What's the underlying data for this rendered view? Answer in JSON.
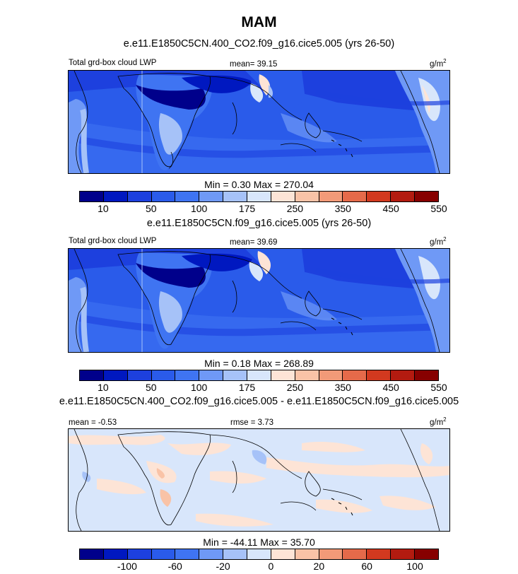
{
  "title": "MAM",
  "panels": [
    {
      "case": "e.e11.E1850C5CN.400_CO2.f09_g16.cice5.005 (yrs 26-50)",
      "left_label": "Total grd-box cloud LWP",
      "center_label": "mean=  39.15",
      "units": "g/m",
      "units_exp": "2",
      "minmax": "Min =   0.30 Max = 270.04"
    },
    {
      "case": "e.e11.E1850C5CN.f09_g16.cice5.005 (yrs 26-50)",
      "left_label": "Total grd-box cloud LWP",
      "center_label": "mean=  39.69",
      "units": "g/m",
      "units_exp": "2",
      "minmax": "Min =   0.18 Max = 268.89"
    },
    {
      "case": "e.e11.E1850C5CN.400_CO2.f09_g16.cice5.005 - e.e11.E1850C5CN.f09_g16.cice5.005",
      "left_label": "mean =  -0.53",
      "center_label": "rmse =  3.73",
      "units": "g/m",
      "units_exp": "2",
      "minmax": "Min = -44.11 Max =  35.70"
    }
  ],
  "colorbars": [
    {
      "colors": [
        "#00008b",
        "#0018c0",
        "#1d40de",
        "#2a5bea",
        "#3f74f2",
        "#6f99f6",
        "#a6c2f8",
        "#d8e6fb",
        "#fde4d6",
        "#f9c3a7",
        "#f29a78",
        "#e56a4a",
        "#d2391f",
        "#b31b10",
        "#870000"
      ],
      "tick_labels": [
        "10",
        "50",
        "100",
        "175",
        "250",
        "350",
        "450",
        "550"
      ],
      "tick_boundaries": [
        1,
        3,
        5,
        7,
        9,
        11,
        13,
        15
      ]
    },
    {
      "colors": [
        "#00008b",
        "#0018c0",
        "#1d40de",
        "#2a5bea",
        "#3f74f2",
        "#6f99f6",
        "#a6c2f8",
        "#d8e6fb",
        "#fde4d6",
        "#f9c3a7",
        "#f29a78",
        "#e56a4a",
        "#d2391f",
        "#b31b10",
        "#870000"
      ],
      "tick_labels": [
        "10",
        "50",
        "100",
        "175",
        "250",
        "350",
        "450",
        "550"
      ],
      "tick_boundaries": [
        1,
        3,
        5,
        7,
        9,
        11,
        13,
        15
      ]
    },
    {
      "colors": [
        "#00008b",
        "#0018c0",
        "#1d40de",
        "#2a5bea",
        "#3f74f2",
        "#6f99f6",
        "#a6c2f8",
        "#d8e6fb",
        "#fde4d6",
        "#f9c3a7",
        "#f29a78",
        "#e56a4a",
        "#d2391f",
        "#b31b10",
        "#870000"
      ],
      "tick_labels": [
        "-100",
        "-60",
        "-20",
        "0",
        "20",
        "60",
        "100"
      ],
      "tick_boundaries": [
        2,
        4,
        6,
        8,
        10,
        12,
        14
      ]
    }
  ],
  "chart_data": [
    {
      "type": "heatmap",
      "title": "MAM",
      "subtitle": "e.e11.E1850C5CN.400_CO2.f09_g16.cice5.005 (yrs 26-50)",
      "variable": "Total grd-box cloud LWP",
      "units": "g/m2",
      "mean": 39.15,
      "min": 0.3,
      "max": 270.04,
      "contour_levels": [
        10,
        25,
        50,
        75,
        100,
        125,
        150,
        175,
        200,
        250,
        300,
        350,
        400,
        450,
        500,
        550
      ]
    },
    {
      "type": "heatmap",
      "subtitle": "e.e11.E1850C5CN.f09_g16.cice5.005 (yrs 26-50)",
      "variable": "Total grd-box cloud LWP",
      "units": "g/m2",
      "mean": 39.69,
      "min": 0.18,
      "max": 268.89,
      "contour_levels": [
        10,
        25,
        50,
        75,
        100,
        125,
        150,
        175,
        200,
        250,
        300,
        350,
        400,
        450,
        500,
        550
      ]
    },
    {
      "type": "heatmap",
      "subtitle": "e.e11.E1850C5CN.400_CO2.f09_g16.cice5.005 - e.e11.E1850C5CN.f09_g16.cice5.005",
      "units": "g/m2",
      "mean": -0.53,
      "rmse": 3.73,
      "min": -44.11,
      "max": 35.7,
      "contour_levels": [
        -100,
        -80,
        -60,
        -40,
        -20,
        -10,
        0,
        10,
        20,
        40,
        60,
        80,
        100
      ]
    }
  ]
}
